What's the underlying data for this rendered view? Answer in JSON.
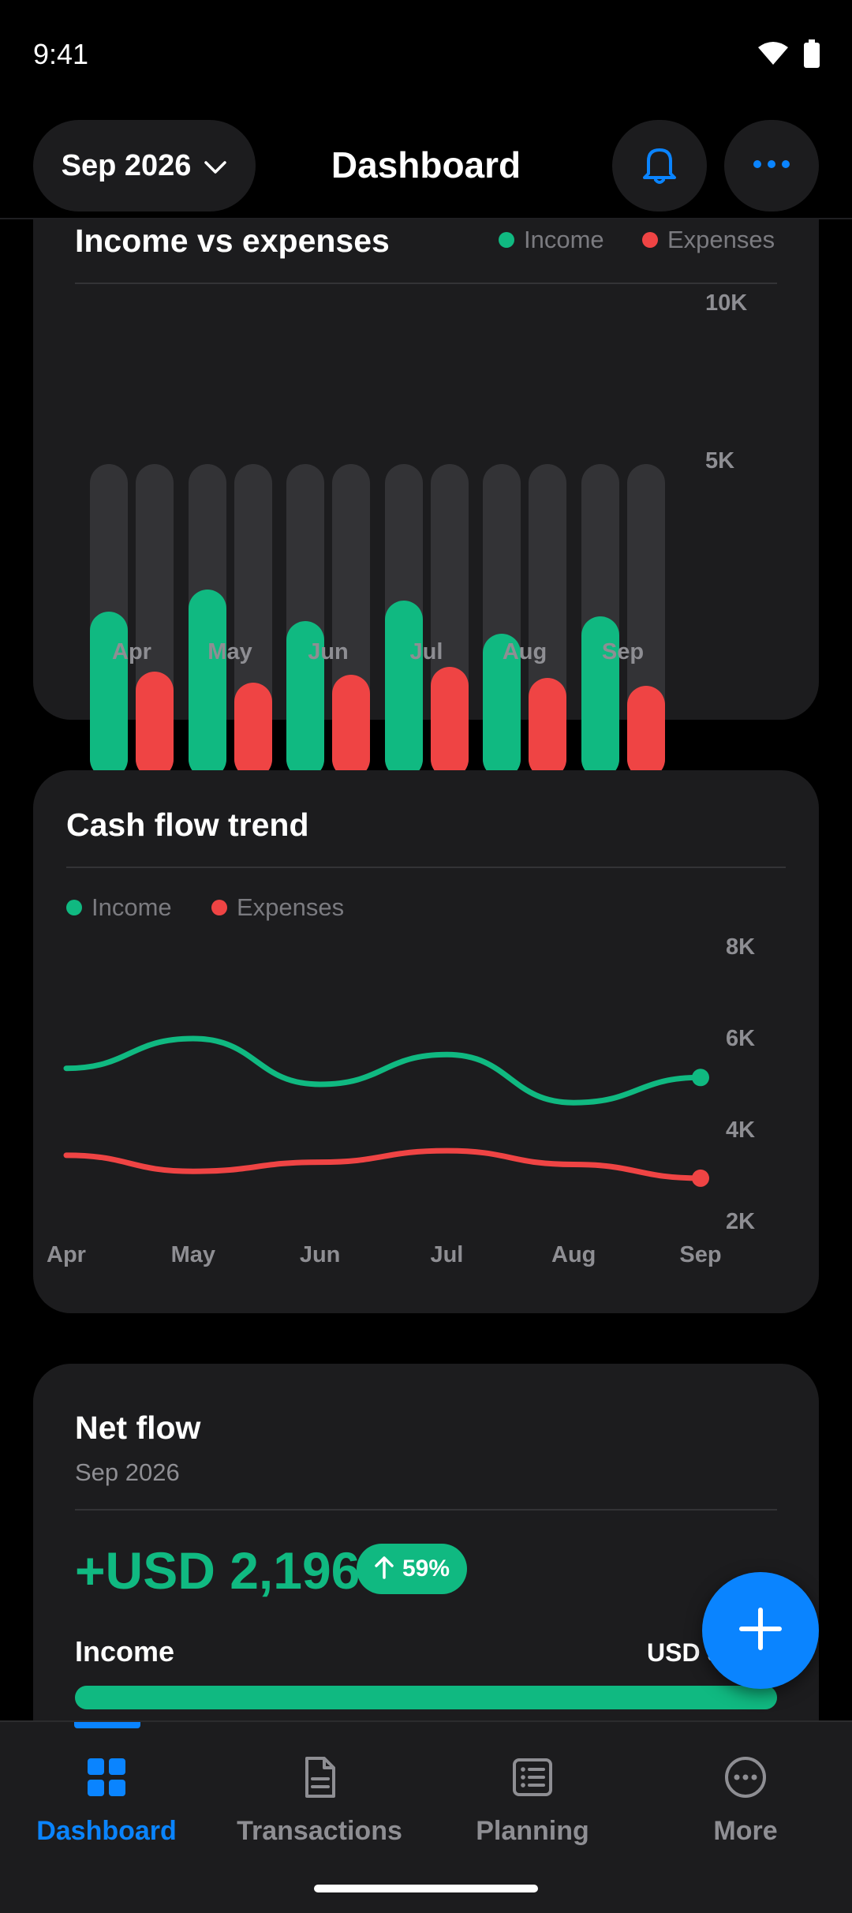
{
  "status": {
    "time": "9:41"
  },
  "header": {
    "month_label": "Sep 2026",
    "title": "Dashboard"
  },
  "income_vs_expenses": {
    "title": "Income vs expenses",
    "legend": {
      "income": "Income",
      "expenses": "Expenses"
    },
    "y_ticks": [
      "10K",
      "5K"
    ]
  },
  "cash_flow": {
    "title": "Cash flow trend",
    "legend": {
      "income": "Income",
      "expenses": "Expenses"
    },
    "y_ticks": [
      "8K",
      "6K",
      "4K",
      "2K"
    ]
  },
  "net_flow": {
    "title": "Net flow",
    "period": "Sep 2026",
    "amount": "+USD 2,196",
    "change_badge": "59%",
    "income_label": "Income",
    "income_value": "USD 5",
    "income_bar_fraction": 1.0
  },
  "tabs": [
    {
      "label": "Dashboard",
      "icon": "grid-icon",
      "active": true
    },
    {
      "label": "Transactions",
      "icon": "document-icon",
      "active": false
    },
    {
      "label": "Planning",
      "icon": "list-icon",
      "active": false
    },
    {
      "label": "More",
      "icon": "more-circle-icon",
      "active": false
    }
  ],
  "colors": {
    "income": "#10b981",
    "expenses": "#ef4444",
    "accent": "#0a84ff",
    "card": "#1c1c1e"
  },
  "chart_data": [
    {
      "type": "bar",
      "title": "Income vs expenses",
      "categories": [
        "Apr",
        "May",
        "Jun",
        "Jul",
        "Aug",
        "Sep"
      ],
      "series": [
        {
          "name": "Income",
          "values": [
            5300,
            6000,
            5000,
            5650,
            4600,
            5150
          ]
        },
        {
          "name": "Expenses",
          "values": [
            3400,
            3050,
            3300,
            3550,
            3200,
            2950
          ]
        }
      ],
      "ylim": [
        0,
        10000
      ],
      "y_ticks": [
        "10K",
        "5K"
      ],
      "legend": "top-right"
    },
    {
      "type": "line",
      "title": "Cash flow trend",
      "x": [
        "Apr",
        "May",
        "Jun",
        "Jul",
        "Aug",
        "Sep"
      ],
      "series": [
        {
          "name": "Income",
          "values": [
            5350,
            6000,
            5000,
            5650,
            4600,
            5150
          ]
        },
        {
          "name": "Expenses",
          "values": [
            3450,
            3100,
            3300,
            3550,
            3250,
            2950
          ]
        }
      ],
      "ylim": [
        2000,
        8000
      ],
      "y_ticks": [
        "8K",
        "6K",
        "4K",
        "2K"
      ],
      "legend": "top-left"
    }
  ]
}
